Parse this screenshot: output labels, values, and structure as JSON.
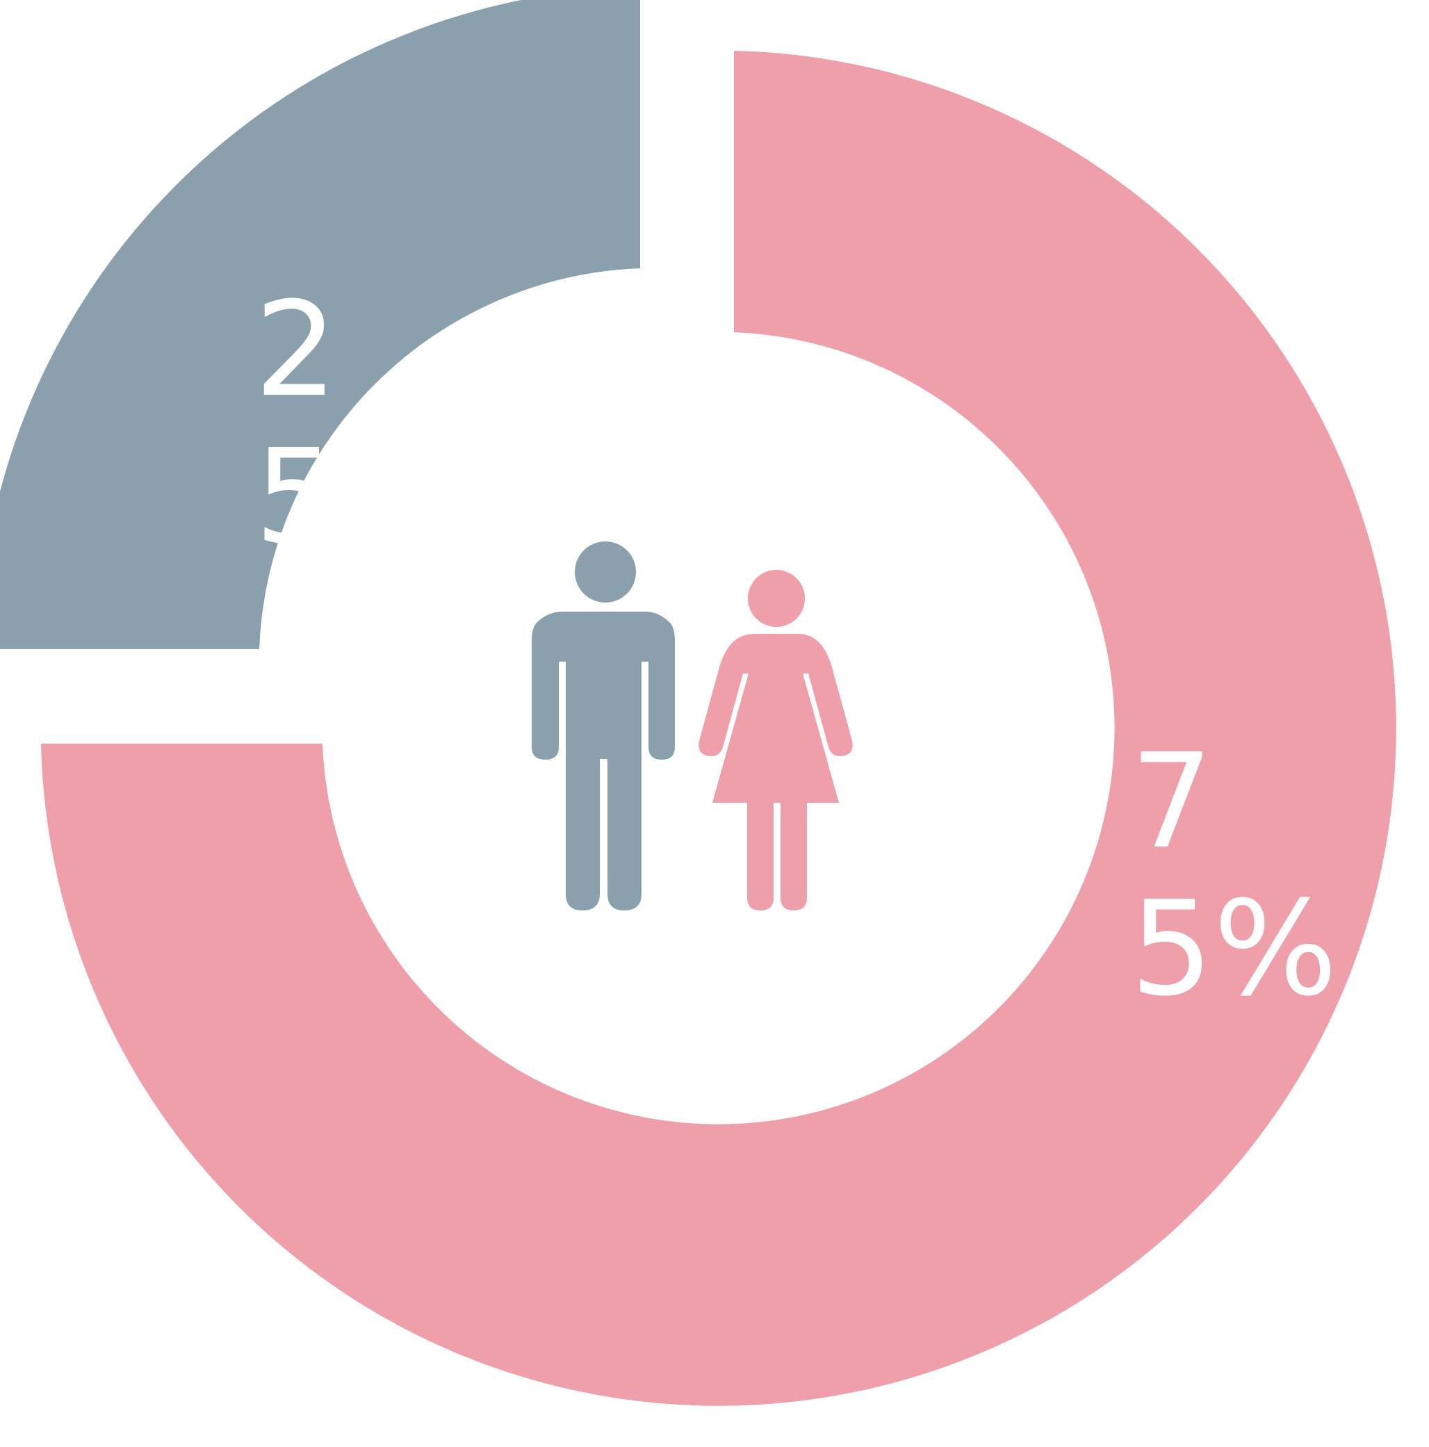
{
  "chart_data": {
    "type": "pie",
    "style": "donut",
    "series": [
      {
        "key": "male",
        "value": 25,
        "label": "25%",
        "color": "#8aa0ac",
        "icon": "male-figure-icon"
      },
      {
        "key": "female",
        "value": 75,
        "label": "75%",
        "color": "#ef9fa9",
        "icon": "female-figure-icon"
      }
    ],
    "legend": "none",
    "grid": false
  }
}
